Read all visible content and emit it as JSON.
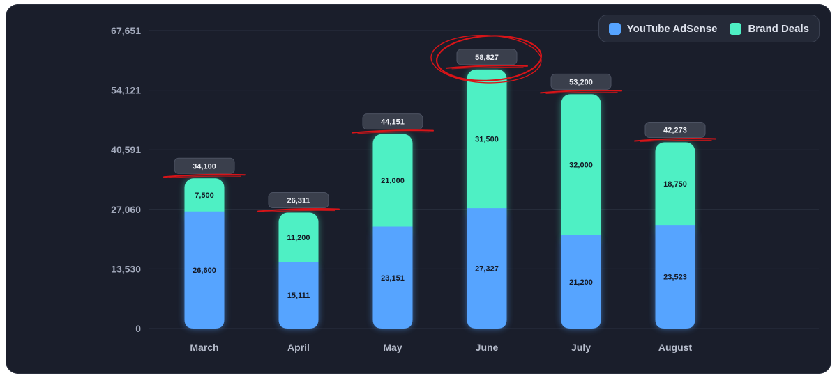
{
  "chart_data": {
    "type": "bar",
    "stacked": true,
    "categories": [
      "March",
      "April",
      "May",
      "June",
      "July",
      "August"
    ],
    "series": [
      {
        "name": "YouTube AdSense",
        "color": "#56a4ff",
        "values": [
          26600,
          15111,
          23151,
          27327,
          21200,
          23523
        ]
      },
      {
        "name": "Brand Deals",
        "color": "#4ef0c4",
        "values": [
          7500,
          11200,
          21000,
          31500,
          32000,
          18750
        ]
      }
    ],
    "totals": [
      34100,
      26311,
      44151,
      58827,
      53200,
      42273
    ],
    "total_labels": [
      "34,100",
      "26,311",
      "44,151",
      "58,827",
      "53,200",
      "42,273"
    ],
    "segment_labels": [
      [
        "26,600",
        "15,111",
        "23,151",
        "27,327",
        "21,200",
        "23,523"
      ],
      [
        "7,500",
        "11,200",
        "21,000",
        "31,500",
        "32,000",
        "18,750"
      ]
    ],
    "yticks": [
      0,
      13530,
      27060,
      40591,
      54121,
      67651
    ],
    "ytick_labels": [
      "0",
      "13,530",
      "27,060",
      "40,591",
      "54,121",
      "67,651"
    ],
    "ylim": [
      0,
      67651
    ],
    "grid": true,
    "legend_position": "top-right",
    "highlight": {
      "category": "June",
      "style": "red circle annotation"
    },
    "annotation_color": "#d81418",
    "title": "",
    "xlabel": "",
    "ylabel": ""
  }
}
